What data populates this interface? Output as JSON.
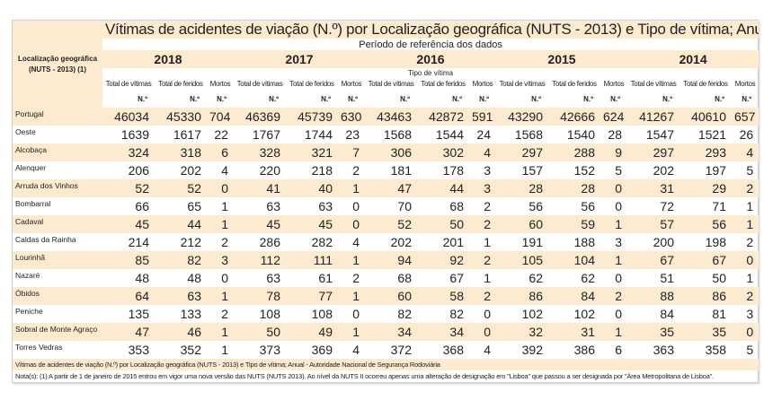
{
  "title": "Vítimas de acidentes de viação (N.º) por Localização geográfica (NUTS - 2013) e Tipo de vítima; Anual",
  "location_header": "Localização geográfica",
  "location_header_sub": "(NUTS - 2013) (1)",
  "period_label": "Período de referência dos dados",
  "type_label": "Tipo de vítima",
  "years": [
    "2018",
    "2017",
    "2016",
    "2015",
    "2014"
  ],
  "columns": [
    "Total de vítimas",
    "Total de feridos",
    "Mortos"
  ],
  "unit": "N.º",
  "rows": [
    {
      "name": "Portugal",
      "values": [
        "46034",
        "45330",
        "704",
        "46369",
        "45739",
        "630",
        "43463",
        "42872",
        "591",
        "43290",
        "42666",
        "624",
        "41267",
        "40610",
        "657"
      ]
    },
    {
      "name": "Oeste",
      "values": [
        "1639",
        "1617",
        "22",
        "1767",
        "1744",
        "23",
        "1568",
        "1544",
        "24",
        "1568",
        "1540",
        "28",
        "1547",
        "1521",
        "26"
      ]
    },
    {
      "name": "Alcobaça",
      "values": [
        "324",
        "318",
        "6",
        "328",
        "321",
        "7",
        "306",
        "302",
        "4",
        "297",
        "288",
        "9",
        "297",
        "293",
        "4"
      ]
    },
    {
      "name": "Alenquer",
      "values": [
        "206",
        "202",
        "4",
        "220",
        "218",
        "2",
        "181",
        "178",
        "3",
        "157",
        "152",
        "5",
        "202",
        "197",
        "5"
      ]
    },
    {
      "name": "Arruda dos Vinhos",
      "values": [
        "52",
        "52",
        "0",
        "41",
        "40",
        "1",
        "47",
        "44",
        "3",
        "28",
        "28",
        "0",
        "31",
        "29",
        "2"
      ]
    },
    {
      "name": "Bombarral",
      "values": [
        "66",
        "65",
        "1",
        "63",
        "63",
        "0",
        "70",
        "68",
        "2",
        "56",
        "56",
        "0",
        "72",
        "71",
        "1"
      ]
    },
    {
      "name": "Cadaval",
      "values": [
        "45",
        "44",
        "1",
        "45",
        "45",
        "0",
        "52",
        "50",
        "2",
        "60",
        "59",
        "1",
        "57",
        "56",
        "1"
      ]
    },
    {
      "name": "Caldas da Rainha",
      "values": [
        "214",
        "212",
        "2",
        "286",
        "282",
        "4",
        "202",
        "201",
        "1",
        "191",
        "188",
        "3",
        "200",
        "198",
        "2"
      ]
    },
    {
      "name": "Lourinhã",
      "values": [
        "85",
        "82",
        "3",
        "112",
        "111",
        "1",
        "94",
        "92",
        "2",
        "105",
        "104",
        "1",
        "67",
        "67",
        "0"
      ]
    },
    {
      "name": "Nazaré",
      "values": [
        "48",
        "48",
        "0",
        "63",
        "61",
        "2",
        "68",
        "67",
        "1",
        "62",
        "62",
        "0",
        "51",
        "50",
        "1"
      ]
    },
    {
      "name": "Óbidos",
      "values": [
        "64",
        "63",
        "1",
        "78",
        "77",
        "1",
        "60",
        "58",
        "2",
        "86",
        "84",
        "2",
        "88",
        "86",
        "2"
      ]
    },
    {
      "name": "Peniche",
      "values": [
        "135",
        "133",
        "2",
        "108",
        "108",
        "0",
        "82",
        "82",
        "0",
        "102",
        "102",
        "0",
        "84",
        "81",
        "3"
      ]
    },
    {
      "name": "Sobral de Monte Agraço",
      "values": [
        "47",
        "46",
        "1",
        "50",
        "49",
        "1",
        "34",
        "34",
        "0",
        "32",
        "31",
        "1",
        "35",
        "35",
        "0"
      ]
    },
    {
      "name": "Torres Vedras",
      "values": [
        "353",
        "352",
        "1",
        "373",
        "369",
        "4",
        "372",
        "368",
        "4",
        "392",
        "386",
        "6",
        "363",
        "358",
        "5"
      ]
    }
  ],
  "source": "Vítimas de acidentes de viação (N.º) por Localização geográfica (NUTS - 2013) e Tipo de vítima; Anual - Autoridade Nacional de Segurança Rodoviária",
  "note": "Nota(s): (1) A partir de 1 de janeiro de 2015 entrou em vigor uma nova versão das NUTS (NUTS 2013). Ao nível da NUTS II ocorreu apenas uma alteração de designação em \"Lisboa\" que passou a ser designada por \"Área Metropolitana de Lisboa\".",
  "colors": {
    "band": "#fcebcf",
    "text": "#222222"
  }
}
